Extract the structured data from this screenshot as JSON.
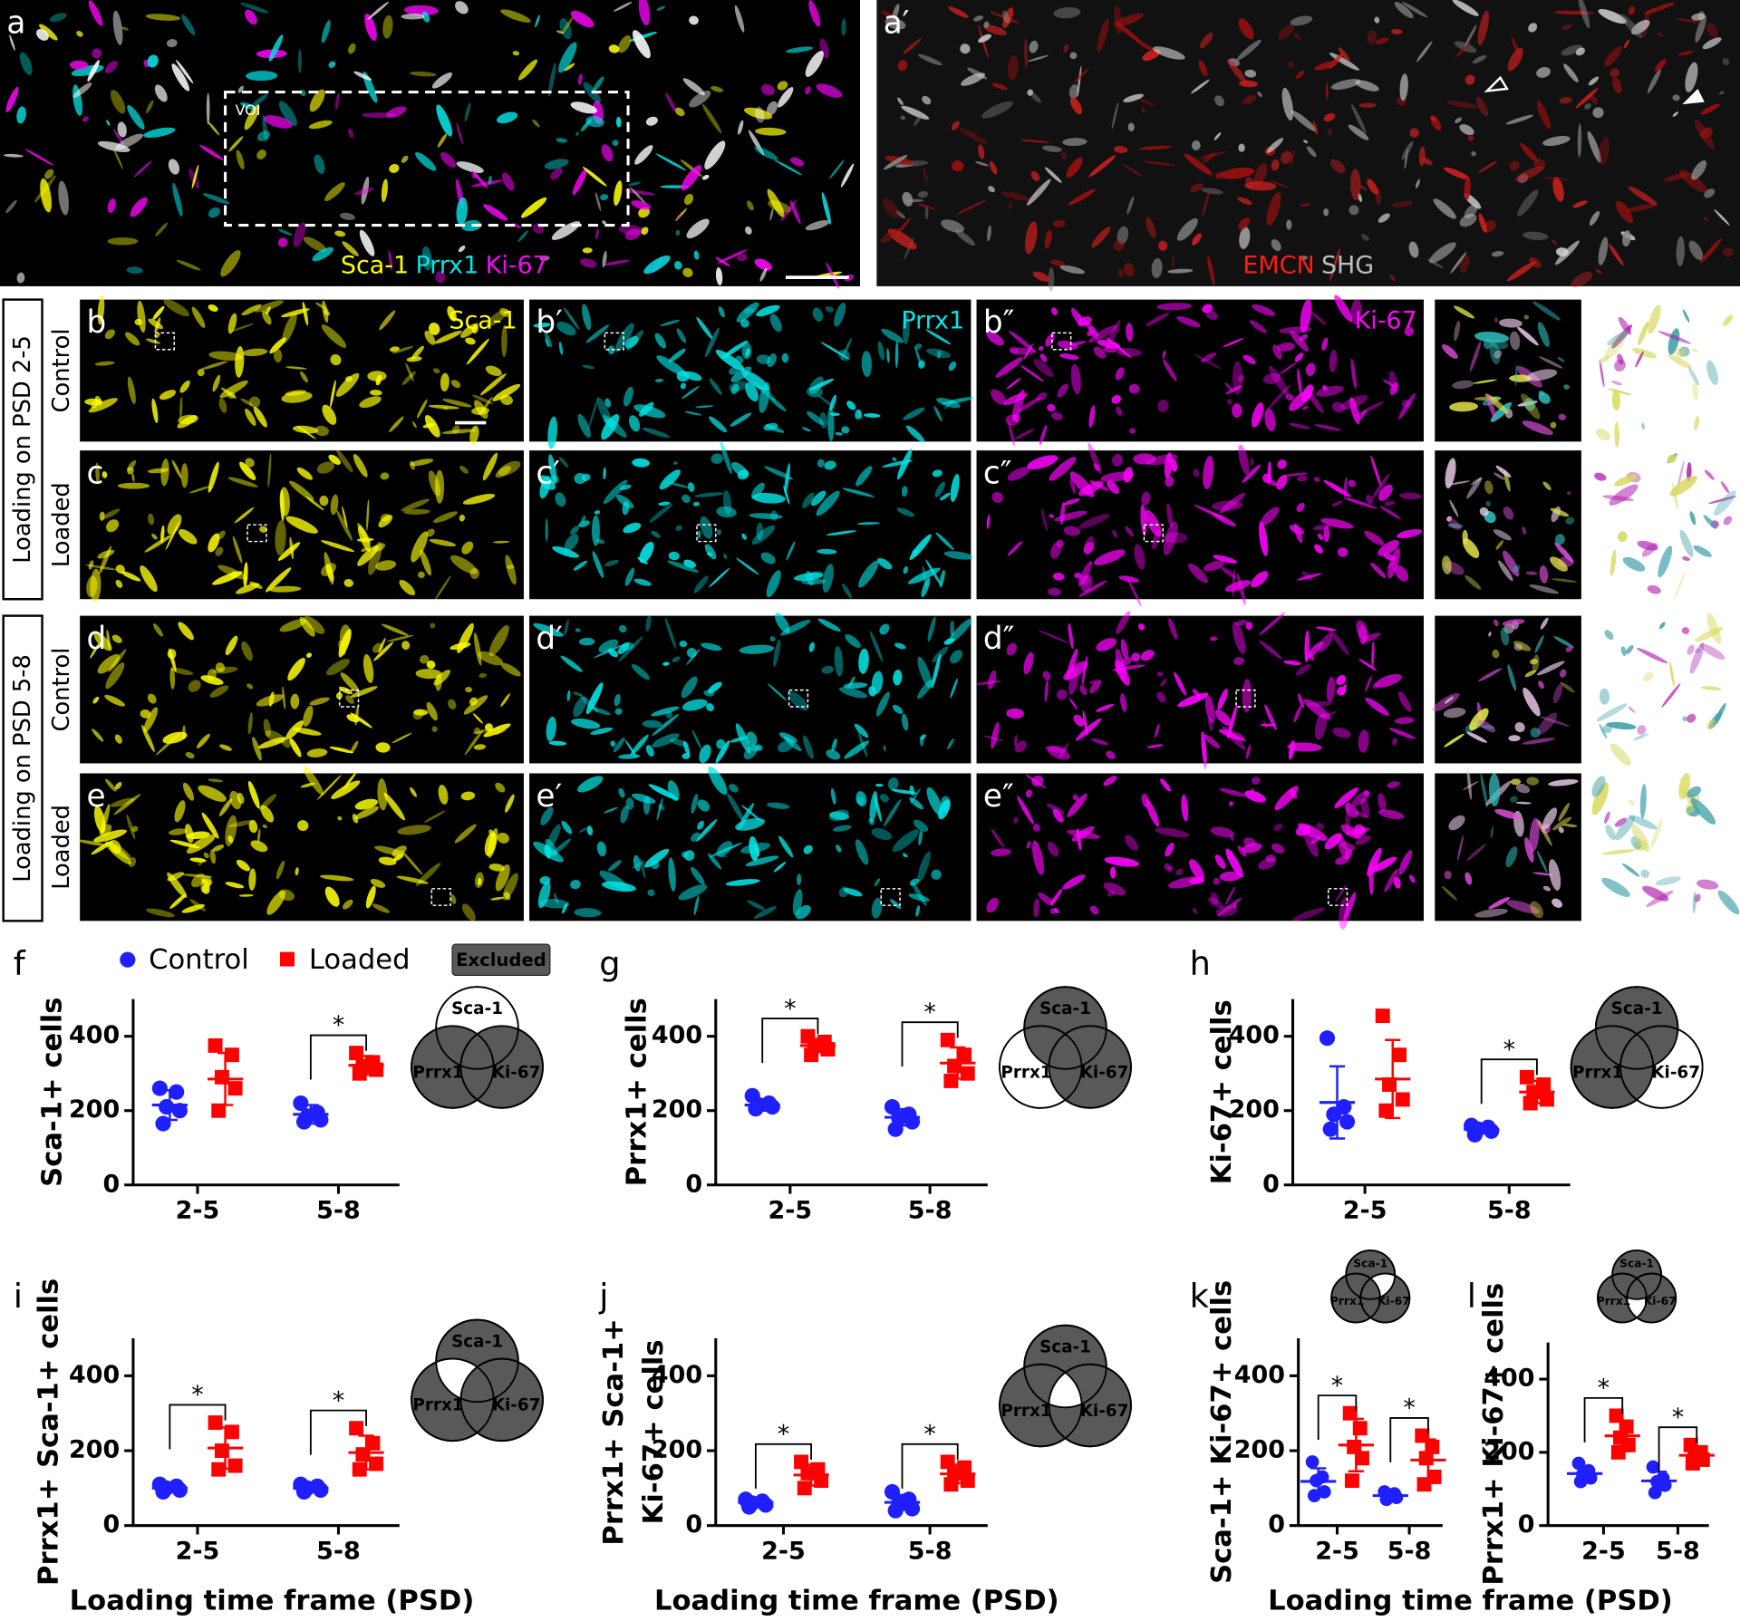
{
  "images": {
    "a": {
      "letter": "a",
      "roi": "VOI",
      "labels": [
        {
          "text": "Sca-1",
          "color": "#ffff00"
        },
        {
          "text": "Prrx1",
          "color": "#00e5e5"
        },
        {
          "text": "Ki-67",
          "color": "#ff00ff"
        }
      ]
    },
    "a2": {
      "letter": "a′",
      "labels": [
        {
          "text": "EMCN",
          "color": "#ff1a1a"
        },
        {
          "text": "SHG",
          "color": "#bfbfbf"
        }
      ]
    },
    "channels": [
      {
        "text": "Sca-1",
        "color": "#ffff00"
      },
      {
        "text": "Prrx1",
        "color": "#00e5e5"
      },
      {
        "text": "Ki-67",
        "color": "#ff00ff"
      }
    ],
    "groups": [
      {
        "label": "Loading on PSD 2-5",
        "rows": [
          {
            "condition": "Control",
            "letters": [
              "b",
              "b′",
              "b″"
            ]
          },
          {
            "condition": "Loaded",
            "letters": [
              "c",
              "c′",
              "c″"
            ]
          }
        ]
      },
      {
        "label": "Loading on PSD 5-8",
        "rows": [
          {
            "condition": "Control",
            "letters": [
              "d",
              "d′",
              "d″"
            ]
          },
          {
            "condition": "Loaded",
            "letters": [
              "e",
              "e′",
              "e″"
            ]
          }
        ]
      }
    ]
  },
  "chart_data": [
    {
      "type": "scatter",
      "panel": "f",
      "ylabel": "Sca-1+ cells",
      "categories": [
        "2-5",
        "5-8"
      ],
      "ylim": [
        0,
        500
      ],
      "yticks": [
        0,
        200,
        400
      ],
      "series": [
        {
          "name": "Control",
          "color": "#1f1fff",
          "marker": "circle",
          "points": [
            [
              260,
              250,
              210,
              200,
              165
            ],
            [
              220,
              195,
              185,
              175,
              170
            ]
          ],
          "values": [
            215,
            190
          ],
          "sd": [
            40,
            25
          ]
        },
        {
          "name": "Loaded",
          "color": "#ff0000",
          "marker": "square",
          "points": [
            [
              375,
              350,
              290,
              260,
              200
            ],
            [
              355,
              330,
              320,
              310,
              300
            ]
          ],
          "values": [
            285,
            322
          ],
          "sd": [
            70,
            25
          ]
        }
      ],
      "significance": [
        null,
        "*"
      ],
      "excluded_label": "Excluded",
      "venn": {
        "labels": [
          "Sca-1",
          "Prrx1",
          "Ki-67"
        ],
        "white": [
          true,
          false,
          false
        ]
      }
    },
    {
      "type": "scatter",
      "panel": "g",
      "ylabel": "Prrx1+ cells",
      "categories": [
        "2-5",
        "5-8"
      ],
      "ylim": [
        0,
        500
      ],
      "yticks": [
        0,
        200,
        400
      ],
      "series": [
        {
          "color": "#1f1fff",
          "marker": "circle",
          "points": [
            [
              240,
              220,
              215,
              210,
              205
            ],
            [
              210,
              190,
              180,
              170,
              150
            ]
          ],
          "values": [
            215,
            182
          ],
          "sd": [
            15,
            22
          ]
        },
        {
          "color": "#ff0000",
          "marker": "square",
          "points": [
            [
              400,
              385,
              375,
              365,
              350
            ],
            [
              390,
              350,
              320,
              300,
              280
            ]
          ],
          "values": [
            375,
            328
          ],
          "sd": [
            18,
            42
          ]
        }
      ],
      "significance": [
        "*",
        "*"
      ],
      "venn": {
        "labels": [
          "Sca-1",
          "Prrx1",
          "Ki-67"
        ],
        "white": [
          false,
          true,
          false
        ]
      }
    },
    {
      "type": "scatter",
      "panel": "h",
      "ylabel": "Ki-67+ cells",
      "categories": [
        "2-5",
        "5-8"
      ],
      "ylim": [
        0,
        500
      ],
      "yticks": [
        0,
        200,
        400
      ],
      "series": [
        {
          "color": "#1f1fff",
          "marker": "circle",
          "points": [
            [
              395,
              210,
              190,
              170,
              150
            ],
            [
              160,
              155,
              150,
              145,
              135
            ]
          ],
          "values": [
            222,
            150
          ],
          "sd": [
            97,
            10
          ]
        },
        {
          "color": "#ff0000",
          "marker": "square",
          "points": [
            [
              455,
              350,
              270,
              230,
              200
            ],
            [
              290,
              270,
              250,
              230,
              220
            ]
          ],
          "values": [
            285,
            250
          ],
          "sd": [
            105,
            30
          ]
        }
      ],
      "significance": [
        null,
        "*"
      ],
      "venn": {
        "labels": [
          "Sca-1",
          "Prrx1",
          "Ki-67"
        ],
        "white": [
          false,
          false,
          true
        ]
      }
    },
    {
      "type": "scatter",
      "panel": "i",
      "ylabel": "Prrx1+ Sca-1+ cells",
      "xlabel": "Loading time frame (PSD)",
      "categories": [
        "2-5",
        "5-8"
      ],
      "ylim": [
        0,
        500
      ],
      "yticks": [
        0,
        200,
        400
      ],
      "series": [
        {
          "color": "#1f1fff",
          "marker": "circle",
          "points": [
            [
              110,
              105,
              100,
              95,
              90
            ],
            [
              110,
              105,
              100,
              95,
              90
            ]
          ],
          "values": [
            100,
            100
          ],
          "sd": [
            8,
            8
          ]
        },
        {
          "color": "#ff0000",
          "marker": "square",
          "points": [
            [
              275,
              250,
              200,
              160,
              150
            ],
            [
              260,
              220,
              190,
              165,
              150
            ]
          ],
          "values": [
            207,
            195
          ],
          "sd": [
            55,
            45
          ]
        }
      ],
      "significance": [
        "*",
        "*"
      ],
      "venn": {
        "labels": [
          "Sca-1",
          "Prrx1",
          "Ki-67"
        ],
        "white": [
          true,
          true,
          false
        ]
      }
    },
    {
      "type": "scatter",
      "panel": "j",
      "ylabel": [
        "Prrx1+ Sca-1+",
        "Ki-67+ cells"
      ],
      "xlabel": "Loading time frame (PSD)",
      "categories": [
        "2-5",
        "5-8"
      ],
      "ylim": [
        0,
        500
      ],
      "yticks": [
        0,
        200,
        400
      ],
      "series": [
        {
          "color": "#1f1fff",
          "marker": "circle",
          "points": [
            [
              70,
              65,
              60,
              55,
              50
            ],
            [
              90,
              70,
              60,
              45,
              40
            ]
          ],
          "values": [
            62,
            62
          ],
          "sd": [
            8,
            20
          ]
        },
        {
          "color": "#ff0000",
          "marker": "square",
          "points": [
            [
              170,
              150,
              140,
              120,
              100
            ],
            [
              170,
              155,
              140,
              120,
              110
            ]
          ],
          "values": [
            135,
            138
          ],
          "sd": [
            28,
            25
          ]
        }
      ],
      "significance": [
        "*",
        "*"
      ],
      "venn": {
        "labels": [
          "Sca-1",
          "Prrx1",
          "Ki-67"
        ],
        "white": [
          true,
          true,
          true
        ]
      }
    },
    {
      "type": "scatter",
      "panel": "k",
      "ylabel": "Sca-1+ Ki-67+ cells",
      "categories": [
        "2-5",
        "5-8"
      ],
      "ylim": [
        0,
        500
      ],
      "yticks": [
        0,
        200,
        400
      ],
      "series": [
        {
          "color": "#1f1fff",
          "marker": "circle",
          "points": [
            [
              170,
              130,
              120,
              90,
              80
            ],
            [
              90,
              85,
              80,
              75,
              70
            ]
          ],
          "values": [
            118,
            80
          ],
          "sd": [
            35,
            8
          ]
        },
        {
          "color": "#ff0000",
          "marker": "square",
          "points": [
            [
              300,
              260,
              210,
              180,
              120
            ],
            [
              240,
              210,
              180,
              130,
              110
            ]
          ],
          "values": [
            215,
            175
          ],
          "sd": [
            70,
            55
          ]
        }
      ],
      "significance": [
        "*",
        "*"
      ],
      "venn": {
        "labels": [
          "Sca-1",
          "Prrx1",
          "Ki-67"
        ],
        "white": [
          true,
          false,
          true
        ]
      }
    },
    {
      "type": "scatter",
      "panel": "l",
      "ylabel": "Prrx1+ Ki-67+ cells",
      "xlabel": "Loading time frame (PSD)",
      "categories": [
        "2-5",
        "5-8"
      ],
      "ylim": [
        0,
        500
      ],
      "yticks": [
        0,
        200,
        400
      ],
      "series": [
        {
          "color": "#1f1fff",
          "marker": "circle",
          "points": [
            [
              170,
              150,
              140,
              130,
              120
            ],
            [
              160,
              130,
              120,
              110,
              90
            ]
          ],
          "values": [
            142,
            122
          ],
          "sd": [
            20,
            25
          ]
        },
        {
          "color": "#ff0000",
          "marker": "square",
          "points": [
            [
              300,
              270,
              240,
              220,
              200
            ],
            [
              220,
              200,
              190,
              180,
              170
            ]
          ],
          "values": [
            245,
            192
          ],
          "sd": [
            42,
            20
          ]
        }
      ],
      "significance": [
        "*",
        "*"
      ],
      "venn": {
        "labels": [
          "Sca-1",
          "Prrx1",
          "Ki-67"
        ],
        "white": [
          false,
          true,
          true
        ]
      }
    }
  ]
}
